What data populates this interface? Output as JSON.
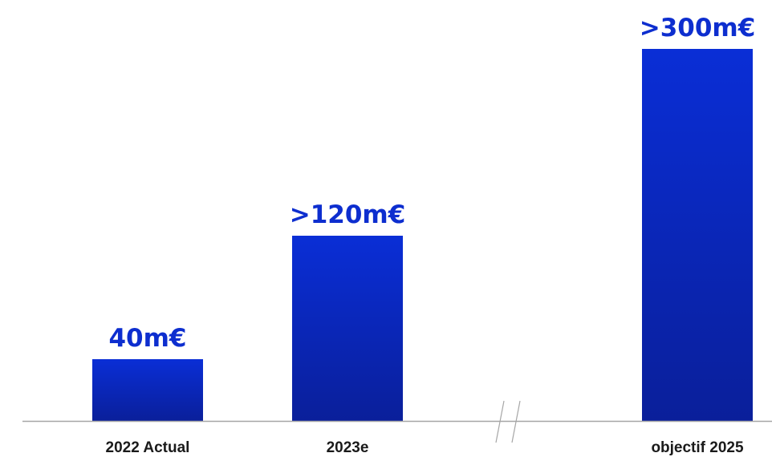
{
  "chart_data": {
    "type": "bar",
    "title": "",
    "categories": [
      "2022 Actual",
      "2023e",
      "objectif 2025"
    ],
    "values": [
      40,
      120,
      300
    ],
    "value_labels": [
      "40m€",
      ">120m€",
      ">300m€"
    ],
    "unit": "m€",
    "xlabel": "",
    "ylabel": "",
    "ylim": [
      0,
      300
    ],
    "grid": false,
    "legend": "none",
    "axis_break_between": [
      "2023e",
      "objectif 2025"
    ],
    "colors": {
      "bar_top": "#0a2ed6",
      "bar_bottom": "#0a1f9a",
      "label": "#0d2ecf",
      "axis": "#a6a6a6"
    }
  }
}
